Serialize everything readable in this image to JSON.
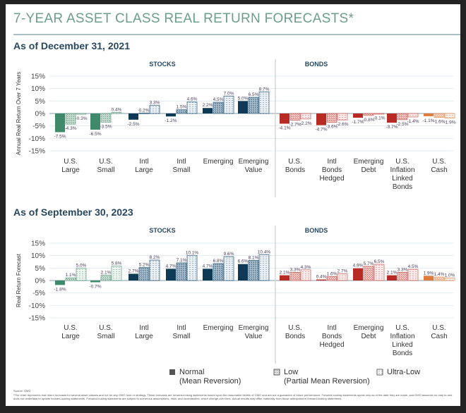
{
  "title": "7-YEAR ASSET CLASS REAL RETURN FORECASTS*",
  "colors": {
    "title": "#6c9d8d",
    "panel_title": "#27475f",
    "stocks_us": "#3f8a6a",
    "stocks_intl": "#0e3a55",
    "bonds": "#b82a24",
    "cash": "#e07b3c"
  },
  "legend": {
    "normal": "Normal",
    "normal_sub": "(Mean Reversion)",
    "low": "Low",
    "low_sub": "(Partial Mean Reversion)",
    "ultra_low": "Ultra-Low"
  },
  "footnote": {
    "source": "Source: GMO",
    "text": "*The chart represents real return forecasts for several asset classes and not for any GMO fund or strategy. These forecasts are forward-looking statements based upon the reasonable beliefs of GMO and are not a guarantee of future performance. Forward-looking statements speak only as of the date they are made, and GMO assumes no duty to and does not undertake to update forward-looking statements. Forward-looking statements are subject to numerous assumptions, risks, and uncertainties, which change over time. Actual results may differ materially from those anticipated in forward-looking statements."
  },
  "chart_data": [
    {
      "type": "bar",
      "title": "As of December 31, 2021",
      "ylabel": "Annual Real Return Over 7 Years",
      "ylim": [
        -15,
        15
      ],
      "yticks": [
        "15%",
        "10%",
        "5%",
        "0%",
        "-5%",
        "-10%",
        "-15%"
      ],
      "groups": [
        "STOCKS",
        "BONDS"
      ],
      "categories": [
        [
          "U.S.",
          "Large"
        ],
        [
          "U.S.",
          "Small"
        ],
        [
          "Intl",
          "Large"
        ],
        [
          "Intl",
          "Small"
        ],
        [
          "Emerging"
        ],
        [
          "Emerging",
          "Value"
        ],
        [
          "U.S.",
          "Bonds"
        ],
        [
          "Intl",
          "Bonds",
          "Hedged"
        ],
        [
          "Emerging",
          "Debt"
        ],
        [
          "U.S.",
          "Inflation",
          "Linked",
          "Bonds"
        ],
        [
          "U.S.",
          "Cash"
        ]
      ],
      "series": [
        {
          "name": "Normal (Mean Reversion)",
          "values": [
            -7.5,
            -6.5,
            -2.5,
            -1.2,
            2.2,
            5.0,
            -4.1,
            -4.7,
            -1.7,
            -3.7,
            -1.1
          ],
          "labels": [
            "-7.5%",
            "-6.5%",
            "-2.5%",
            "-1.2%",
            "2.2%",
            "5.0%",
            "-4.1%",
            "-4.7%",
            "-1.7%",
            "-3.7%",
            "-1.1%"
          ]
        },
        {
          "name": "Low (Partial Mean Reversion)",
          "values": [
            -4.3,
            -3.5,
            0.2,
            1.5,
            4.5,
            6.5,
            -2.7,
            -3.6,
            -0.8,
            -2.5,
            -1.6
          ],
          "labels": [
            "-4.3%",
            "-3.5%",
            "0.2%",
            "1.5%",
            "4.5%",
            "6.5%",
            "-2.7%",
            "-3.6%",
            "-0.8%",
            "-2.5%",
            "-1.6%"
          ]
        },
        {
          "name": "Ultra-Low",
          "values": [
            -0.3,
            0.4,
            3.3,
            4.6,
            7.0,
            8.7,
            -2.2,
            -2.6,
            -0.1,
            -1.4,
            -1.9
          ],
          "labels": [
            "-0.3%",
            "0.4%",
            "3.3%",
            "4.6%",
            "7.0%",
            "8.7%",
            "-2.2%",
            "-2.6%",
            "-0.1%",
            "-1.4%",
            "-1.9%"
          ]
        }
      ]
    },
    {
      "type": "bar",
      "title": "As of September 30, 2023",
      "ylabel": "Real Return Forecast",
      "ylim": [
        -15,
        15
      ],
      "yticks": [
        "15%",
        "10%",
        "5%",
        "0%",
        "-5%",
        "-10%",
        "-15%"
      ],
      "groups": [
        "STOCKS",
        "BONDS"
      ],
      "categories": [
        [
          "U.S.",
          "Large"
        ],
        [
          "U.S.",
          "Small"
        ],
        [
          "Intl",
          "Large"
        ],
        [
          "Intl",
          "Small"
        ],
        [
          "Emerging"
        ],
        [
          "Emerging",
          "Value"
        ],
        [
          "U.S.",
          "Bonds"
        ],
        [
          "Intl",
          "Bonds",
          "Hedged"
        ],
        [
          "Emerging",
          "Debt"
        ],
        [
          "U.S.",
          "Inflation",
          "Linked",
          "Bonds"
        ],
        [
          "U.S.",
          "Cash"
        ]
      ],
      "series": [
        {
          "name": "Normal (Mean Reversion)",
          "values": [
            -1.8,
            -0.7,
            2.7,
            4.7,
            4.7,
            6.6,
            2.1,
            0.4,
            4.9,
            2.1,
            1.9
          ],
          "labels": [
            "-1.8%",
            "-0.7%",
            "2.7%",
            "4.7%",
            "4.7%",
            "6.6%",
            "2.1%",
            "0.4%",
            "4.9%",
            "2.1%",
            "1.9%"
          ]
        },
        {
          "name": "Low (Partial Mean Reversion)",
          "values": [
            1.1,
            2.1,
            5.2,
            7.1,
            6.8,
            8.1,
            3.3,
            1.6,
            5.7,
            3.3,
            1.4
          ],
          "labels": [
            "1.1%",
            "2.1%",
            "5.2%",
            "7.1%",
            "6.8%",
            "8.1%",
            "3.3%",
            "1.6%",
            "5.7%",
            "3.3%",
            "1.4%"
          ]
        },
        {
          "name": "Ultra-Low",
          "values": [
            5.0,
            5.8,
            8.2,
            10.1,
            9.6,
            10.4,
            4.3,
            2.7,
            6.5,
            4.5,
            1.0
          ],
          "labels": [
            "5.0%",
            "5.8%",
            "8.2%",
            "10.1%",
            "9.6%",
            "10.4%",
            "4.3%",
            "2.7%",
            "6.5%",
            "4.5%",
            "1.0%"
          ]
        }
      ]
    }
  ]
}
